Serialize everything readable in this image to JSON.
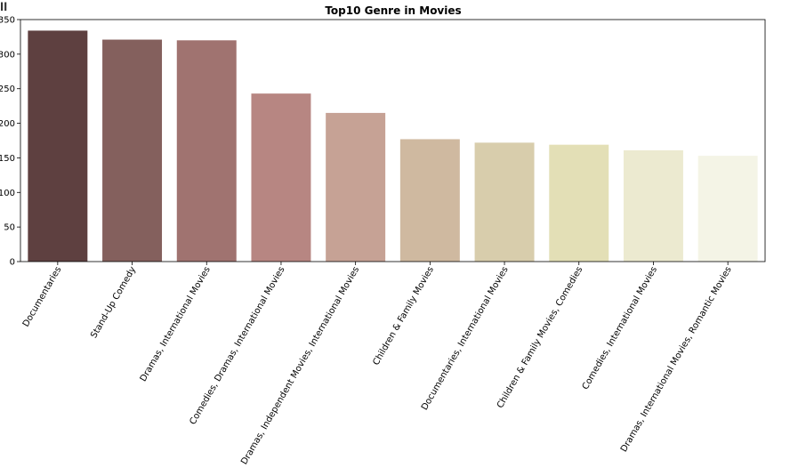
{
  "chart_data": {
    "type": "bar",
    "title": "Top10 Genre in Movies",
    "xlabel": "",
    "ylabel": "",
    "categories": [
      "Documentaries",
      "Stand-Up Comedy",
      "Dramas, International Movies",
      "Comedies, Dramas, International Movies",
      "Dramas, Independent Movies, International Movies",
      "Children & Family Movies",
      "Documentaries, International Movies",
      "Children & Family Movies, Comedies",
      "Comedies, International Movies",
      "Dramas, International Movies, Romantic Movies"
    ],
    "values": [
      334,
      321,
      320,
      243,
      215,
      177,
      172,
      169,
      161,
      153
    ],
    "colors": [
      "#5e4040",
      "#84605d",
      "#a07370",
      "#b78682",
      "#c6a295",
      "#cfb9a0",
      "#d8cdac",
      "#e3dfb6",
      "#ecead0",
      "#f4f4e6"
    ],
    "ylim": [
      0,
      350
    ],
    "yticks": [
      0,
      50,
      100,
      150,
      200,
      250,
      300,
      350
    ],
    "grid": false
  },
  "corner_glyph": "ll"
}
